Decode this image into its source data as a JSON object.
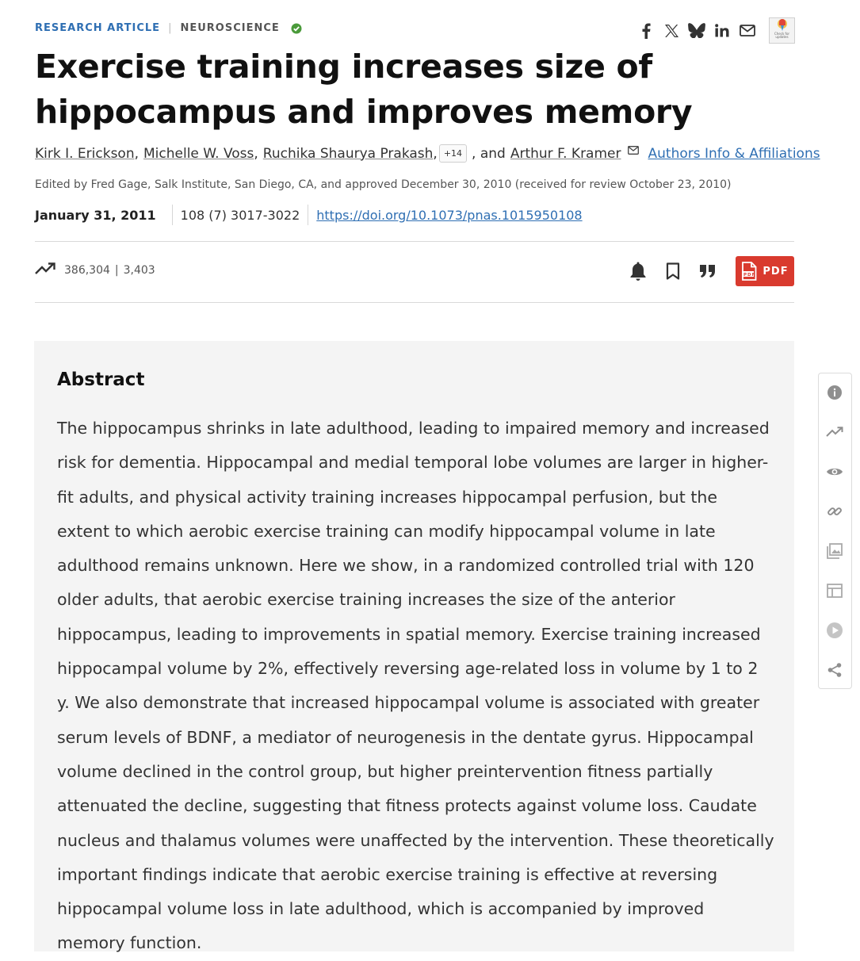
{
  "header": {
    "article_type": "RESEARCH ARTICLE",
    "separator": "|",
    "subject": "NEUROSCIENCE"
  },
  "share_icons": [
    "facebook-icon",
    "x-icon",
    "bluesky-icon",
    "linkedin-icon",
    "email-icon"
  ],
  "crossmark": {
    "label": "Check for updates"
  },
  "title": "Exercise training increases size of hippocampus and improves memory",
  "authors": {
    "list": [
      "Kirk I. Erickson",
      "Michelle W. Voss",
      "Ruchika Shaurya Prakash"
    ],
    "more": "+14",
    "and_text": ", and",
    "last": "Arthur F. Kramer",
    "affiliations_link": "Authors Info & Affiliations"
  },
  "edited_by": "Edited by Fred Gage, Salk Institute, San Diego, CA, and approved December 30, 2010 (received for review October 23, 2010)",
  "publication": {
    "date": "January 31, 2011",
    "citation": "108 (7) 3017-3022",
    "doi": "https://doi.org/10.1073/pnas.1015950108"
  },
  "metrics": {
    "views": "386,304",
    "separator": "|",
    "citations": "3,403"
  },
  "actions": {
    "pdf_label": "PDF"
  },
  "colors": {
    "link": "#2f6fb3",
    "pdf_button": "#d93a2e",
    "verified": "#4a9a3a",
    "abstract_bg": "#f4f4f4"
  },
  "abstract": {
    "heading": "Abstract",
    "text": "The hippocampus shrinks in late adulthood, leading to impaired memory and increased risk for dementia. Hippocampal and medial temporal lobe volumes are larger in higher-fit adults, and physical activity training increases hippocampal perfusion, but the extent to which aerobic exercise training can modify hippocampal volume in late adulthood remains unknown. Here we show, in a randomized controlled trial with 120 older adults, that aerobic exercise training increases the size of the anterior hippocampus, leading to improvements in spatial memory. Exercise training increased hippocampal volume by 2%, effectively reversing age-related loss in volume by 1 to 2 y. We also demonstrate that increased hippocampal volume is associated with greater serum levels of BDNF, a mediator of neurogenesis in the dentate gyrus. Hippocampal volume declined in the control group, but higher preintervention fitness partially attenuated the decline, suggesting that fitness protects against volume loss. Caudate nucleus and thalamus volumes were unaffected by the intervention. These theoretically important findings indicate that aerobic exercise training is effective at reversing hippocampal volume loss in late adulthood, which is accompanied by improved memory function."
  },
  "side_toolbar": [
    "info-icon",
    "metrics-icon",
    "eye-icon",
    "link-icon",
    "images-icon",
    "table-icon",
    "play-icon",
    "share-icon"
  ]
}
